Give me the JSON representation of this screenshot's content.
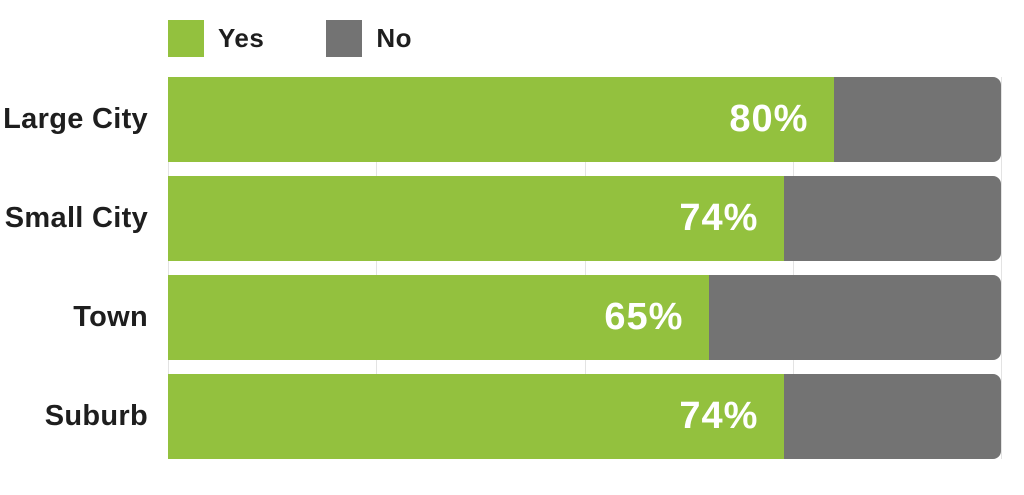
{
  "chart_data": {
    "type": "bar",
    "orientation": "horizontal",
    "stacked": true,
    "title": "",
    "xlabel": "",
    "ylabel": "",
    "xlim": [
      0,
      100
    ],
    "grid": "vertical",
    "gridlines_pct": [
      0,
      25,
      50,
      75,
      100
    ],
    "grid_color": "#e3e3e3",
    "legend_position": "top-left",
    "categories": [
      "Large City",
      "Small City",
      "Town",
      "Suburb"
    ],
    "series": [
      {
        "name": "Yes",
        "values": [
          80,
          74,
          65,
          74
        ],
        "color": "#93C13E"
      },
      {
        "name": "No",
        "values": [
          20,
          26,
          35,
          26
        ],
        "color": "#737373"
      }
    ],
    "legend": [
      {
        "label": "Yes",
        "color": "#93C13E"
      },
      {
        "label": "No",
        "color": "#737373"
      }
    ],
    "rows": [
      {
        "category": "Large City",
        "yes_pct": 80,
        "no_pct": 20,
        "value_label": "80%"
      },
      {
        "category": "Small City",
        "yes_pct": 74,
        "no_pct": 26,
        "value_label": "74%"
      },
      {
        "category": "Town",
        "yes_pct": 65,
        "no_pct": 35,
        "value_label": "65%"
      },
      {
        "category": "Suburb",
        "yes_pct": 74,
        "no_pct": 26,
        "value_label": "74%"
      }
    ],
    "value_label_color": "#ffffff",
    "category_label_color": "#1e1e1e"
  }
}
